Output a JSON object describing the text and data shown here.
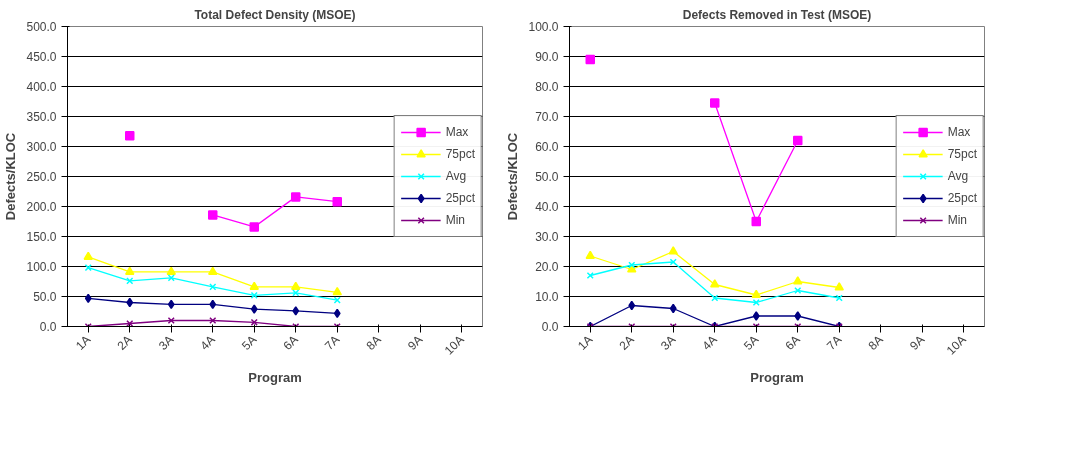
{
  "chart_data": [
    {
      "type": "line",
      "title": "Total Defect Density (MSOE)",
      "xlabel": "Program",
      "ylabel": "Defects/KLOC",
      "categories": [
        "1A",
        "2A",
        "3A",
        "4A",
        "5A",
        "6A",
        "7A",
        "8A",
        "9A",
        "10A"
      ],
      "ylim": [
        0,
        500
      ],
      "yticks": [
        {
          "value": 0,
          "label": "0.0"
        },
        {
          "value": 50,
          "label": "50.0"
        },
        {
          "value": 100,
          "label": "100.0"
        },
        {
          "value": 150,
          "label": "150.0"
        },
        {
          "value": 200,
          "label": "200.0"
        },
        {
          "value": 250,
          "label": "250.0"
        },
        {
          "value": 300,
          "label": "300.0"
        },
        {
          "value": 350,
          "label": "350.0"
        },
        {
          "value": 400,
          "label": "400.0"
        },
        {
          "value": 450,
          "label": "450.0"
        },
        {
          "value": 500,
          "label": "500.0"
        }
      ],
      "grid": "y",
      "legend": "right",
      "series": [
        {
          "name": "Max",
          "color": "#ff00ff",
          "marker": "square",
          "values": [
            null,
            318,
            null,
            186,
            166,
            216,
            208,
            null,
            null,
            null
          ]
        },
        {
          "name": "75pct",
          "color": "#ffff00",
          "marker": "triangle",
          "values": [
            116,
            91,
            91,
            91,
            66,
            66,
            57,
            null,
            null,
            null
          ]
        },
        {
          "name": "Avg",
          "color": "#00ffff",
          "marker": "cross",
          "values": [
            98,
            76,
            81,
            66,
            52,
            56,
            44,
            null,
            null,
            null
          ]
        },
        {
          "name": "25pct",
          "color": "#000080",
          "marker": "diamond",
          "values": [
            47,
            40,
            37,
            37,
            29,
            26,
            22,
            null,
            null,
            null
          ]
        },
        {
          "name": "Min",
          "color": "#800080",
          "marker": "cross",
          "values": [
            0,
            5,
            10,
            10,
            7,
            0,
            0,
            null,
            null,
            null
          ]
        }
      ]
    },
    {
      "type": "line",
      "title": "Defects Removed in Test (MSOE)",
      "xlabel": "Program",
      "ylabel": "Defects/KLOC",
      "categories": [
        "1A",
        "2A",
        "3A",
        "4A",
        "5A",
        "6A",
        "7A",
        "8A",
        "9A",
        "10A"
      ],
      "ylim": [
        0,
        100
      ],
      "yticks": [
        {
          "value": 0,
          "label": "0.0"
        },
        {
          "value": 10,
          "label": "10.0"
        },
        {
          "value": 20,
          "label": "20.0"
        },
        {
          "value": 30,
          "label": "30.0"
        },
        {
          "value": 40,
          "label": "40.0"
        },
        {
          "value": 50,
          "label": "50.0"
        },
        {
          "value": 60,
          "label": "60.0"
        },
        {
          "value": 70,
          "label": "70.0"
        },
        {
          "value": 80,
          "label": "80.0"
        },
        {
          "value": 90,
          "label": "90.0"
        },
        {
          "value": 100,
          "label": "100.0"
        }
      ],
      "grid": "y",
      "legend": "right",
      "series": [
        {
          "name": "Max",
          "color": "#ff00ff",
          "marker": "square",
          "values": [
            89,
            null,
            null,
            74.5,
            35,
            62,
            null,
            null,
            null,
            null
          ]
        },
        {
          "name": "75pct",
          "color": "#ffff00",
          "marker": "triangle",
          "values": [
            23.5,
            19,
            25,
            14,
            10.5,
            15,
            13,
            null,
            null,
            null
          ]
        },
        {
          "name": "Avg",
          "color": "#00ffff",
          "marker": "cross",
          "values": [
            17,
            20.5,
            21.5,
            9.5,
            8,
            12,
            9.5,
            null,
            null,
            null
          ]
        },
        {
          "name": "25pct",
          "color": "#000080",
          "marker": "diamond",
          "values": [
            0,
            7,
            6,
            0,
            3.5,
            3.5,
            0,
            null,
            null,
            null
          ]
        },
        {
          "name": "Min",
          "color": "#800080",
          "marker": "cross",
          "values": [
            0,
            0,
            0,
            0,
            0,
            0,
            0,
            null,
            null,
            null
          ]
        }
      ]
    }
  ]
}
